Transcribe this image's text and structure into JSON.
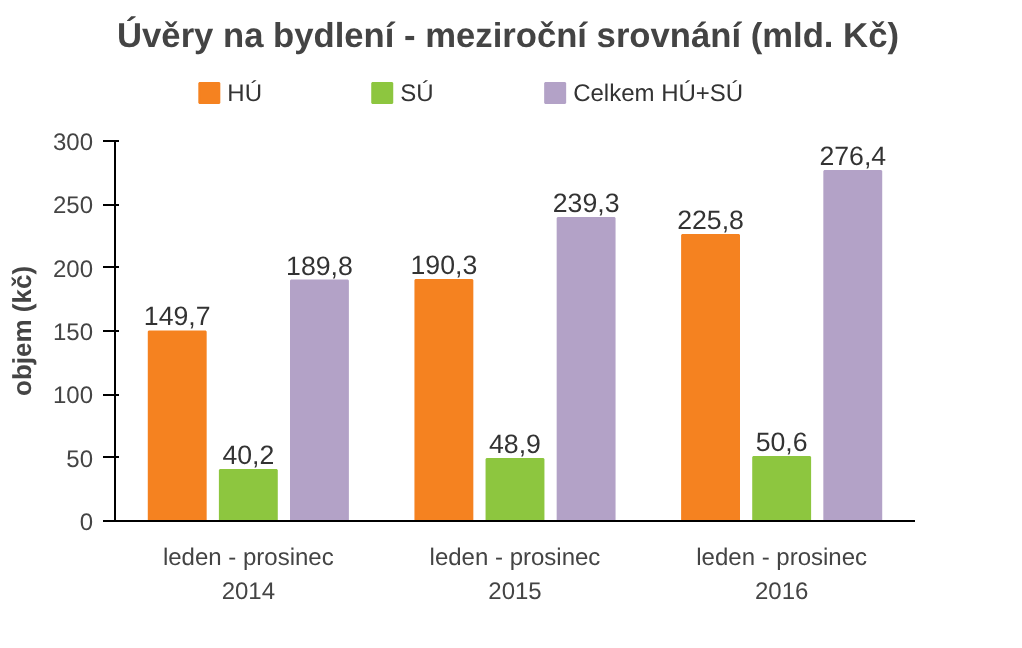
{
  "chart_data": {
    "type": "bar",
    "title": "Úvěry na bydlení - meziroční srovnání (mld. Kč)",
    "ylabel": "objem (kč)",
    "categories": [
      "leden - prosinec\n2014",
      "leden - prosinec\n2015",
      "leden - prosinec\n2016"
    ],
    "series": [
      {
        "name": "HÚ",
        "color": "#f58220",
        "values": [
          149.7,
          190.3,
          225.8
        ]
      },
      {
        "name": "SÚ",
        "color": "#8dc63f",
        "values": [
          40.2,
          48.9,
          50.6
        ]
      },
      {
        "name": "Celkem HÚ+SÚ",
        "color": "#b3a2c7",
        "values": [
          189.8,
          239.3,
          276.4
        ]
      }
    ],
    "value_labels": [
      [
        "149,7",
        "190,3",
        "225,8"
      ],
      [
        "40,2",
        "48,9",
        "50,6"
      ],
      [
        "189,8",
        "239,3",
        "276,4"
      ]
    ],
    "ylim": [
      0,
      300
    ],
    "yticks": [
      0,
      50,
      100,
      150,
      200,
      250,
      300
    ],
    "grid": false,
    "legend": "top"
  }
}
